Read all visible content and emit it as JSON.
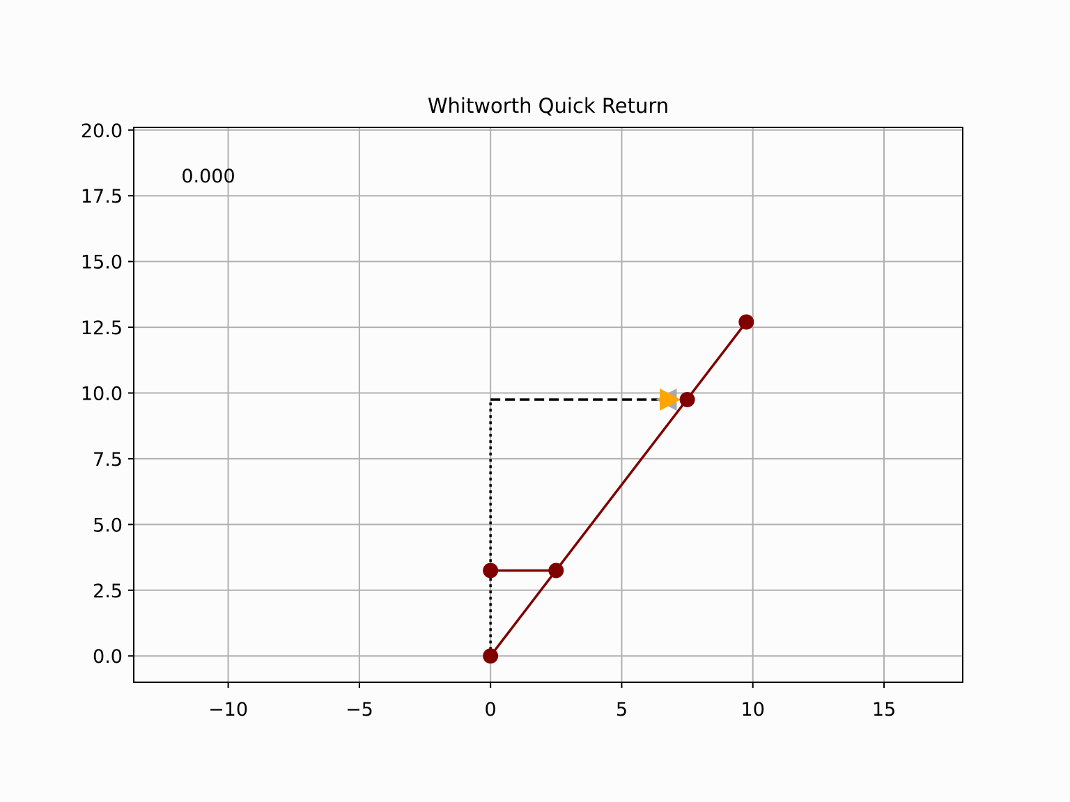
{
  "chart_data": {
    "type": "line",
    "title": "Whitworth Quick Return",
    "xlabel": "",
    "ylabel": "",
    "xlim": [
      -13.6,
      18.0
    ],
    "ylim": [
      -1.0,
      20.1
    ],
    "xticks": [
      -10,
      -5,
      0,
      5,
      10,
      15
    ],
    "xtick_labels": [
      "−10",
      "−5",
      "0",
      "5",
      "10",
      "15"
    ],
    "yticks": [
      0.0,
      2.5,
      5.0,
      7.5,
      10.0,
      12.5,
      15.0,
      17.5,
      20.0
    ],
    "ytick_labels": [
      "0.0",
      "2.5",
      "5.0",
      "7.5",
      "10.0",
      "12.5",
      "15.0",
      "17.5",
      "20.0"
    ],
    "grid": true,
    "annotation": "0.000",
    "colors": {
      "link": "#800000",
      "guide": "#000000",
      "arrow_right": "#ffa500",
      "arrow_left": "#a9a9a9",
      "grid": "#b0b0b0"
    },
    "series": [
      {
        "style": "link",
        "x": [
          0.0,
          2.5
        ],
        "y": [
          3.25,
          3.25
        ]
      },
      {
        "style": "link",
        "x": [
          0.0,
          9.75
        ],
        "y": [
          0.0,
          12.7
        ]
      },
      {
        "style": "dashed",
        "x": [
          0.0,
          7.5
        ],
        "y": [
          9.75,
          9.75
        ]
      },
      {
        "style": "dotted",
        "x": [
          0.0,
          0.0
        ],
        "y": [
          0.0,
          9.75
        ]
      }
    ],
    "joints": [
      {
        "x": 0.0,
        "y": 0.0
      },
      {
        "x": 0.0,
        "y": 3.25
      },
      {
        "x": 2.5,
        "y": 3.25
      },
      {
        "x": 7.5,
        "y": 9.75
      },
      {
        "x": 9.75,
        "y": 12.7
      }
    ],
    "arrows": [
      {
        "direction": "left",
        "x": 6.7,
        "y": 9.75,
        "color": "#a9a9a9"
      },
      {
        "direction": "right",
        "x": 6.85,
        "y": 9.75,
        "color": "#ffa500"
      }
    ]
  }
}
